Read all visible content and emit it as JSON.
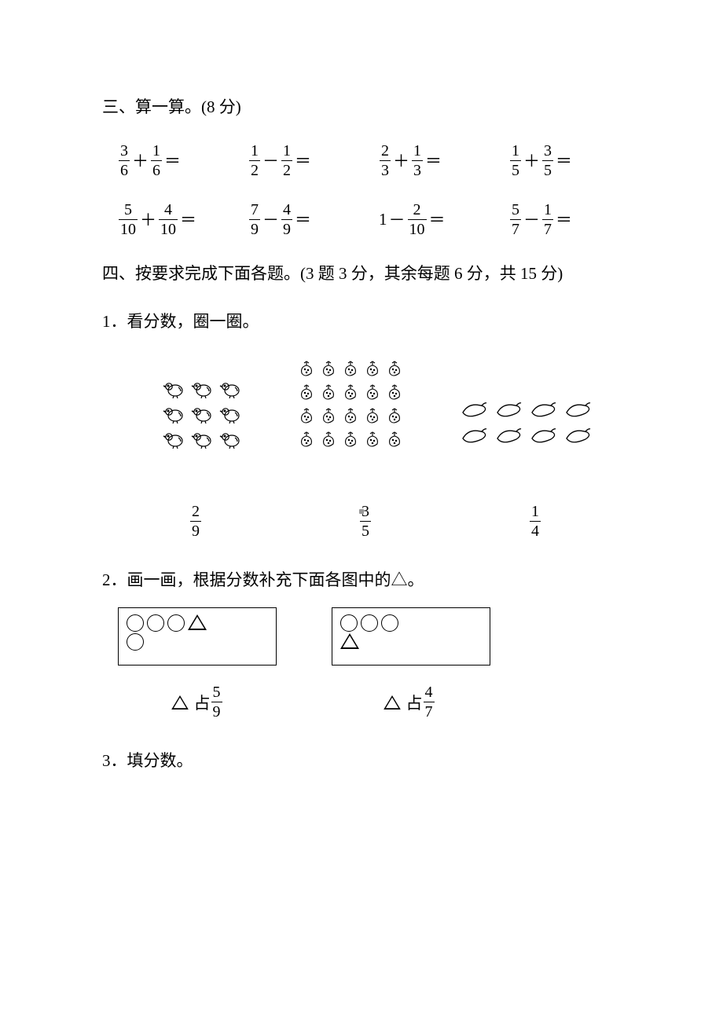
{
  "colors": {
    "text": "#000000",
    "background": "#ffffff",
    "border": "#000000"
  },
  "typography": {
    "body_font": "SimSun",
    "body_size_pt": 16
  },
  "section3": {
    "title": "三、算一算。(8 分)",
    "equations": [
      {
        "a_num": "3",
        "a_den": "6",
        "op": "＋",
        "b_num": "1",
        "b_den": "6"
      },
      {
        "a_num": "1",
        "a_den": "2",
        "op": "－",
        "b_num": "1",
        "b_den": "2"
      },
      {
        "a_num": "2",
        "a_den": "3",
        "op": "＋",
        "b_num": "1",
        "b_den": "3"
      },
      {
        "a_num": "1",
        "a_den": "5",
        "op": "＋",
        "b_num": "3",
        "b_den": "5"
      },
      {
        "a_num": "5",
        "a_den": "10",
        "op": "＋",
        "b_num": "4",
        "b_den": "10"
      },
      {
        "a_num": "7",
        "a_den": "9",
        "op": "－",
        "b_num": "4",
        "b_den": "9"
      },
      {
        "whole_a": "1",
        "op": "－",
        "b_num": "2",
        "b_den": "10"
      },
      {
        "a_num": "5",
        "a_den": "7",
        "op": "－",
        "b_num": "1",
        "b_den": "7"
      }
    ],
    "equals": "＝"
  },
  "section4": {
    "title": "四、按要求完成下面各题。(3 题 3 分，其余每题 6 分，共 15 分)",
    "q1": {
      "text": "1．看分数，圈一圈。",
      "groups": [
        {
          "kind": "chick",
          "rows": 3,
          "cols": 3,
          "frac_num": "2",
          "frac_den": "9"
        },
        {
          "kind": "berry",
          "rows": 4,
          "cols": 5,
          "frac_num": "3",
          "frac_den": "5"
        },
        {
          "kind": "eggplant",
          "rows": 2,
          "cols": 4,
          "frac_num": "1",
          "frac_den": "4"
        }
      ]
    },
    "q2": {
      "text": "2．画一画，根据分数补充下面各图中的△。",
      "boxes": [
        {
          "lines": [
            [
              "circle",
              "circle",
              "circle",
              "triangle"
            ],
            [
              "circle"
            ]
          ],
          "caption_prefix": "占",
          "frac_num": "5",
          "frac_den": "9"
        },
        {
          "lines": [
            [
              "circle",
              "circle",
              "circle"
            ],
            [
              "triangle"
            ]
          ],
          "caption_prefix": "占",
          "frac_num": "4",
          "frac_den": "7"
        }
      ]
    },
    "q3": {
      "text": "3．填分数。"
    }
  }
}
